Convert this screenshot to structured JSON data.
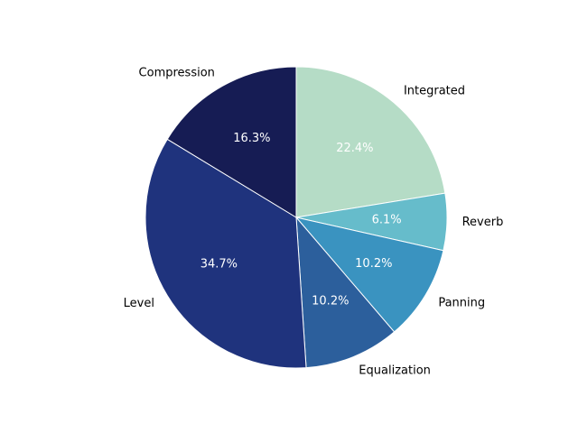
{
  "chart_data": {
    "type": "pie",
    "title": "",
    "start_angle_deg": 90,
    "direction": "clockwise",
    "slice_edge_color": "#ffffff",
    "slices": [
      {
        "label": "Integrated",
        "value": 22.4,
        "pct_label": "22.4%",
        "color": "#b5dcc6"
      },
      {
        "label": "Reverb",
        "value": 6.1,
        "pct_label": "6.1%",
        "color": "#66bccb"
      },
      {
        "label": "Panning",
        "value": 10.2,
        "pct_label": "10.2%",
        "color": "#3a93c0"
      },
      {
        "label": "Equalization",
        "value": 10.2,
        "pct_label": "10.2%",
        "color": "#2c5f9c"
      },
      {
        "label": "Level",
        "value": 34.7,
        "pct_label": "34.7%",
        "color": "#1f337d"
      },
      {
        "label": "Compression",
        "value": 16.3,
        "pct_label": "16.3%",
        "color": "#161c54"
      }
    ]
  }
}
